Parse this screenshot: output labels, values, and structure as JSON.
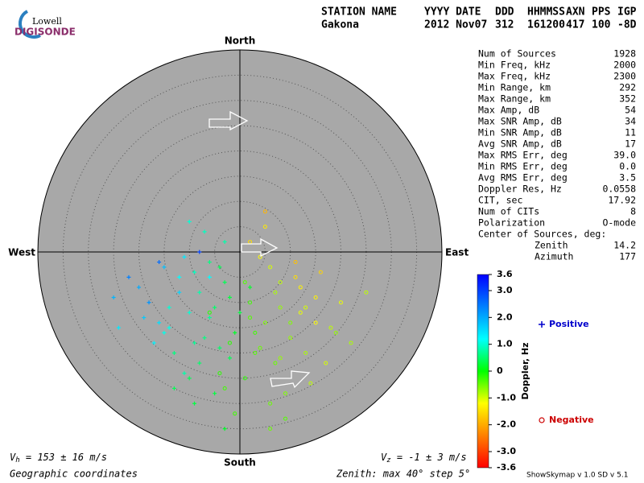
{
  "logo": {
    "top": "Lowell",
    "bottom": "DIGISONDE"
  },
  "header": {
    "labels": [
      "STATION NAME",
      "YYYY DATE",
      "DDD",
      "HHMMSS",
      "AXN",
      "PPS",
      "IGP"
    ],
    "values": [
      "Gakona",
      "2012 Nov07",
      "312",
      "161200",
      "417",
      "100",
      "-8D"
    ]
  },
  "stats": {
    "rows": [
      [
        "Num of Sources",
        "1928"
      ],
      [
        "Min Freq, kHz",
        "2000"
      ],
      [
        "Max Freq, kHz",
        "2300"
      ],
      [
        "Min Range, km",
        "292"
      ],
      [
        "Max Range, km",
        "352"
      ],
      [
        "Max Amp, dB",
        "54"
      ],
      [
        "Max SNR Amp, dB",
        "34"
      ],
      [
        "Min SNR Amp, dB",
        "11"
      ],
      [
        "Avg SNR Amp, dB",
        "17"
      ],
      [
        "Max RMS Err, deg",
        "39.0"
      ],
      [
        "Min RMS Err, deg",
        "0.0"
      ],
      [
        "Avg RMS Err, deg",
        "3.5"
      ],
      [
        "Doppler Res, Hz",
        "0.0558"
      ],
      [
        "CIT, sec",
        "17.92"
      ],
      [
        "Num of CITs",
        "8"
      ],
      [
        "Polarization",
        "O-mode"
      ]
    ],
    "center_title": "Center of Sources, deg:",
    "center_rows": [
      [
        "Zenith",
        "14.2"
      ],
      [
        "Azimuth",
        "177"
      ]
    ]
  },
  "footer": {
    "vh": {
      "symbol": "V",
      "sub": "h",
      "text": " = 153 ± 16 m/s"
    },
    "vz": {
      "symbol": "V",
      "sub": "z",
      "text": " = -1 ± 3 m/s"
    },
    "coords": "Geographic coordinates",
    "zenith": "Zenith: max 40°  step 5°",
    "version": "ShowSkymap v 1.0   SD v 5.1"
  },
  "chart_data": {
    "type": "skymap",
    "directions": {
      "north": "North",
      "south": "South",
      "east": "East",
      "west": "West"
    },
    "xlim": [
      -40,
      40
    ],
    "ylim": [
      -40,
      40
    ],
    "rings": [
      5,
      10,
      15,
      20,
      25,
      30,
      35
    ],
    "background": "#a8a8a8",
    "clim": [
      -3.6,
      3.6
    ],
    "colormap": [
      "#ff0000",
      "#ff8000",
      "#ffff00",
      "#00ff00",
      "#00ffff",
      "#0080ff",
      "#0000ff"
    ],
    "cticks": [
      3.6,
      {
        "value": 3,
        "label": "3.0"
      },
      {
        "value": 2,
        "label": "2.0"
      },
      {
        "value": 1,
        "label": "1.0"
      },
      0,
      {
        "value": -1,
        "label": "-1.0"
      },
      {
        "value": -2,
        "label": "-2.0"
      },
      {
        "value": -3,
        "label": "-3.0"
      },
      -3.6
    ],
    "clabel": "Doppler, Hz",
    "series": [
      {
        "name": "Positive",
        "marker": "+",
        "color": "#0000cc",
        "x": [
          -12,
          -8,
          -15,
          -10,
          -6,
          -18,
          -3,
          -14,
          -9,
          -5,
          -20,
          -11,
          -7,
          -2,
          -16,
          -13,
          -4,
          -8,
          -22,
          -1,
          -10,
          -6,
          -17,
          -12,
          -3,
          -9,
          -14,
          -5,
          2,
          -19,
          -7,
          -11,
          -25,
          -4,
          -8,
          -15,
          0,
          -13,
          -6,
          -10,
          -2,
          -16,
          -9,
          -24,
          -3
        ],
        "values": [
          -5,
          -8,
          -3,
          -12,
          -2,
          -10,
          -6,
          -15,
          -18,
          -11,
          -7,
          -1,
          4,
          -9,
          -14,
          -20,
          -3,
          -22,
          -5,
          -16,
          -25,
          -13,
          -18,
          -8,
          2,
          -4,
          -11,
          -28,
          -7,
          -13,
          -17,
          -24,
          -9,
          -19,
          0,
          -16,
          -12,
          -27,
          -5,
          6,
          -21,
          -2,
          -30,
          -15,
          -35
        ],
        "doppler": [
          1.2,
          0.8,
          1.8,
          1.0,
          0.6,
          2.2,
          0.4,
          1.1,
          0.7,
          0.5,
          2.0,
          1.4,
          0.9,
          0.3,
          1.5,
          0.6,
          0.4,
          0.5,
          2.4,
          0.2,
          0.4,
          0.7,
          1.3,
          1.6,
          0.8,
          0.9,
          1.0,
          0.3,
          0.2,
          1.7,
          0.6,
          0.8,
          1.9,
          0.5,
          3.0,
          1.1,
          0.3,
          0.4,
          1.2,
          1.0,
          0.4,
          2.6,
          0.3,
          1.4,
          0.2
        ]
      },
      {
        "name": "Negative",
        "marker": "o",
        "color": "#cc0000",
        "x": [
          2,
          5,
          8,
          12,
          3,
          6,
          10,
          15,
          1,
          4,
          7,
          11,
          18,
          -2,
          9,
          13,
          5,
          2,
          16,
          8,
          -4,
          6,
          20,
          11,
          3,
          14,
          7,
          -1,
          10,
          17,
          4,
          12,
          22,
          1,
          8,
          -6,
          15,
          5,
          9,
          25,
          -3,
          13,
          6,
          19,
          2
        ],
        "values": [
          -10,
          -14,
          -6,
          -12,
          -20,
          -3,
          -17,
          -9,
          -25,
          -1,
          -22,
          -5,
          -15,
          -18,
          -28,
          -20,
          5,
          -13,
          -4,
          -11,
          -24,
          -30,
          -10,
          -2,
          -16,
          -26,
          -8,
          -32,
          -14,
          -22,
          -19,
          -7,
          -18,
          -6,
          -21,
          -12,
          -14,
          8,
          -33,
          -8,
          -27,
          -11,
          -35,
          -16,
          2
        ],
        "doppler": [
          -0.3,
          -0.6,
          -0.9,
          -1.1,
          -0.4,
          -1.0,
          -0.7,
          -1.3,
          -0.2,
          -1.2,
          -0.5,
          -1.5,
          -0.9,
          -0.2,
          -0.6,
          -0.8,
          -1.4,
          -0.4,
          -1.6,
          -0.7,
          -0.2,
          -0.5,
          -1.1,
          -1.8,
          -0.3,
          -0.9,
          -0.8,
          -0.3,
          -0.6,
          -1.0,
          -0.5,
          -1.3,
          -0.8,
          -0.4,
          -0.7,
          -0.2,
          -1.2,
          -1.9,
          -0.4,
          -0.9,
          -0.3,
          -1.0,
          -0.5,
          -0.7,
          -1.5
        ]
      }
    ]
  }
}
